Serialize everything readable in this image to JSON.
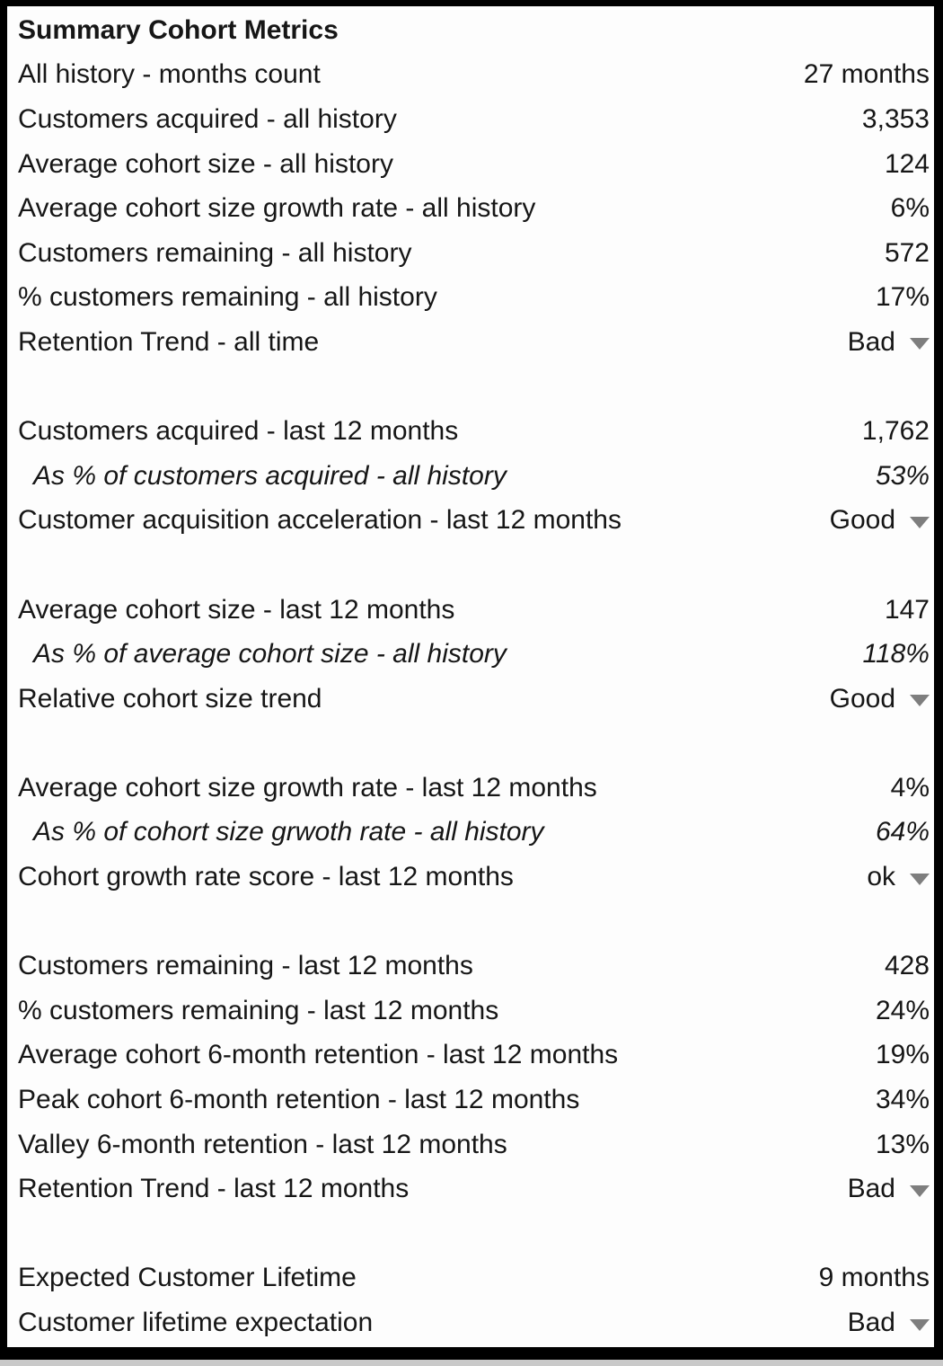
{
  "table": {
    "rows": [
      {
        "type": "title",
        "label": "Summary Cohort Metrics"
      },
      {
        "type": "metric",
        "label": "All history - months count",
        "value": "27 months"
      },
      {
        "type": "metric",
        "label": "Customers acquired - all history",
        "value": "3,353"
      },
      {
        "type": "metric",
        "label": "Average cohort size - all history",
        "value": "124"
      },
      {
        "type": "metric",
        "label": "Average cohort size growth rate - all history",
        "value": "6%"
      },
      {
        "type": "metric",
        "label": "Customers remaining - all history",
        "value": "572"
      },
      {
        "type": "metric",
        "label": "% customers remaining - all history",
        "value": "17%"
      },
      {
        "type": "dropdown",
        "label": "Retention Trend - all time",
        "value": "Bad"
      },
      {
        "type": "blank"
      },
      {
        "type": "metric",
        "label": "Customers acquired - last 12 months",
        "value": "1,762"
      },
      {
        "type": "sub",
        "label": "As % of customers acquired - all history",
        "value": "53%"
      },
      {
        "type": "dropdown",
        "label": "Customer acquisition acceleration - last 12 months",
        "value": "Good"
      },
      {
        "type": "blank"
      },
      {
        "type": "metric",
        "label": "Average cohort size - last 12 months",
        "value": "147"
      },
      {
        "type": "sub",
        "label": "As % of average cohort size - all history",
        "value": "118%"
      },
      {
        "type": "dropdown",
        "label": "Relative cohort size trend",
        "value": "Good"
      },
      {
        "type": "blank"
      },
      {
        "type": "metric",
        "label": "Average cohort size growth rate - last 12 months",
        "value": "4%"
      },
      {
        "type": "sub",
        "label": "As % of cohort size grwoth rate - all history",
        "value": "64%"
      },
      {
        "type": "dropdown",
        "label": "Cohort growth rate score - last 12 months",
        "value": "ok"
      },
      {
        "type": "blank"
      },
      {
        "type": "metric",
        "label": "Customers remaining - last 12 months",
        "value": "428"
      },
      {
        "type": "metric",
        "label": "% customers remaining - last 12 months",
        "value": "24%"
      },
      {
        "type": "metric",
        "label": "Average cohort 6-month retention - last 12 months",
        "value": "19%"
      },
      {
        "type": "metric",
        "label": "Peak cohort 6-month retention - last 12 months",
        "value": "34%"
      },
      {
        "type": "metric",
        "label": "Valley 6-month retention - last 12 months",
        "value": "13%"
      },
      {
        "type": "dropdown",
        "label": "Retention Trend - last 12 months",
        "value": "Bad"
      },
      {
        "type": "blank"
      },
      {
        "type": "metric",
        "label": "Expected Customer Lifetime",
        "value": "9 months"
      },
      {
        "type": "dropdown",
        "label": "Customer lifetime expectation",
        "value": "Bad"
      }
    ],
    "icons": {
      "dropdown_arrow": "down-triangle"
    },
    "colors": {
      "border": "#000000",
      "text": "#161616",
      "background": "#fdfdfd",
      "dropdown_arrow": "#7e7e7e",
      "outer_background": "#c9c9c9"
    }
  }
}
